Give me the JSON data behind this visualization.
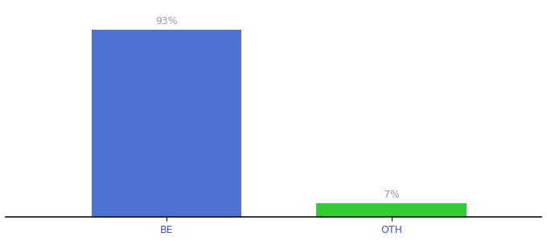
{
  "categories": [
    "BE",
    "OTH"
  ],
  "values": [
    93,
    7
  ],
  "bar_colors": [
    "#4d72d4",
    "#33cc33"
  ],
  "labels": [
    "93%",
    "7%"
  ],
  "background_color": "#ffffff",
  "ylim": [
    0,
    105
  ],
  "label_fontsize": 9,
  "tick_fontsize": 9,
  "label_color": "#999999",
  "tick_color": "#4455bb",
  "bar_positions": [
    0.3,
    0.72
  ],
  "bar_width": 0.28
}
